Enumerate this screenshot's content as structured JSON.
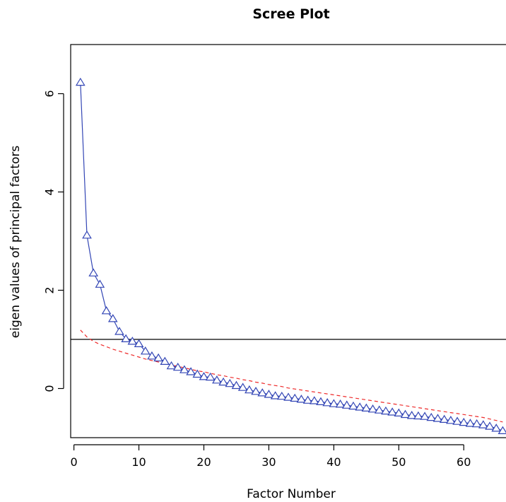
{
  "chart_data": {
    "type": "line",
    "title": "Scree Plot",
    "xlabel": "Factor Number",
    "ylabel": "eigen values of principal factors",
    "xlim": [
      -0.5,
      66.5
    ],
    "ylim": [
      -1.0,
      7.0
    ],
    "x_ticks": [
      0,
      10,
      20,
      30,
      40,
      50,
      60
    ],
    "y_ticks": [
      0,
      2,
      4,
      6
    ],
    "reference_line": {
      "y": 1,
      "color": "#000000"
    },
    "x": [
      1,
      2,
      3,
      4,
      5,
      6,
      7,
      8,
      9,
      10,
      11,
      12,
      13,
      14,
      15,
      16,
      17,
      18,
      19,
      20,
      21,
      22,
      23,
      24,
      25,
      26,
      27,
      28,
      29,
      30,
      31,
      32,
      33,
      34,
      35,
      36,
      37,
      38,
      39,
      40,
      41,
      42,
      43,
      44,
      45,
      46,
      47,
      48,
      49,
      50,
      51,
      52,
      53,
      54,
      55,
      56,
      57,
      58,
      59,
      60,
      61,
      62,
      63,
      64,
      65,
      66
    ],
    "series": [
      {
        "style": "solid line with triangle markers",
        "color": "#3346b5",
        "values": [
          6.23,
          3.12,
          2.35,
          2.12,
          1.58,
          1.42,
          1.16,
          1.01,
          0.96,
          0.91,
          0.76,
          0.66,
          0.62,
          0.55,
          0.46,
          0.43,
          0.38,
          0.34,
          0.29,
          0.24,
          0.23,
          0.17,
          0.13,
          0.1,
          0.06,
          0.02,
          -0.03,
          -0.06,
          -0.09,
          -0.12,
          -0.15,
          -0.16,
          -0.18,
          -0.2,
          -0.22,
          -0.24,
          -0.25,
          -0.27,
          -0.29,
          -0.31,
          -0.32,
          -0.34,
          -0.36,
          -0.38,
          -0.4,
          -0.42,
          -0.44,
          -0.46,
          -0.48,
          -0.5,
          -0.53,
          -0.55,
          -0.56,
          -0.57,
          -0.59,
          -0.61,
          -0.63,
          -0.65,
          -0.67,
          -0.69,
          -0.71,
          -0.72,
          -0.74,
          -0.77,
          -0.81,
          -0.86
        ]
      },
      {
        "style": "dashed line",
        "color": "#ee2a2a",
        "values": [
          1.19,
          1.05,
          0.96,
          0.9,
          0.85,
          0.8,
          0.76,
          0.72,
          0.68,
          0.64,
          0.6,
          0.57,
          0.54,
          0.51,
          0.48,
          0.45,
          0.42,
          0.39,
          0.36,
          0.34,
          0.31,
          0.28,
          0.26,
          0.23,
          0.21,
          0.18,
          0.16,
          0.13,
          0.11,
          0.08,
          0.06,
          0.04,
          0.01,
          -0.01,
          -0.03,
          -0.05,
          -0.07,
          -0.09,
          -0.11,
          -0.13,
          -0.15,
          -0.17,
          -0.19,
          -0.21,
          -0.23,
          -0.25,
          -0.27,
          -0.29,
          -0.31,
          -0.33,
          -0.35,
          -0.37,
          -0.39,
          -0.41,
          -0.43,
          -0.45,
          -0.47,
          -0.49,
          -0.51,
          -0.53,
          -0.55,
          -0.57,
          -0.59,
          -0.62,
          -0.65,
          -0.68
        ]
      }
    ]
  }
}
